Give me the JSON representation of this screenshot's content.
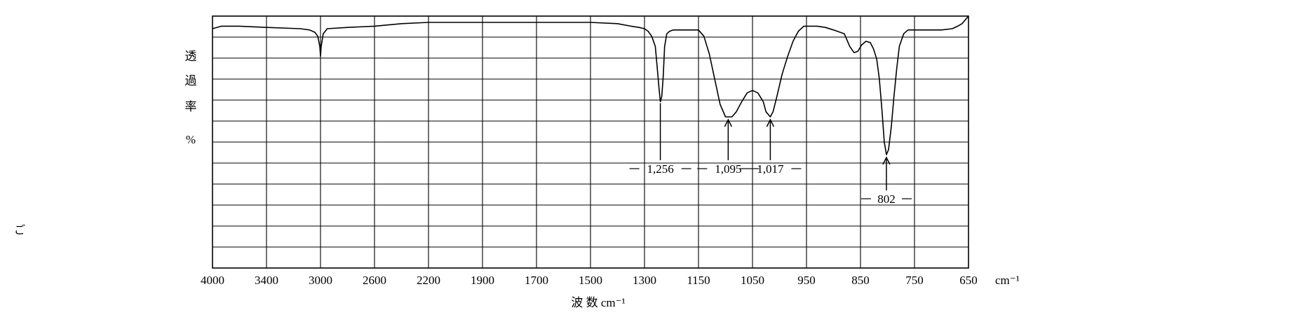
{
  "chart_data": {
    "type": "line",
    "title": "",
    "xlabel": "波 数 cm⁻¹",
    "ylabel_chars": [
      "透",
      "過",
      "率",
      "%"
    ],
    "x_unit": "cm⁻¹",
    "x_tick_labels": [
      "4000",
      "3400",
      "3000",
      "2600",
      "2200",
      "1900",
      "1700",
      "1500",
      "1300",
      "1150",
      "1050",
      "950",
      "850",
      "750",
      "650"
    ],
    "grid": true,
    "series": [
      {
        "x": [
          4000,
          3900,
          3700,
          3400,
          3150,
          3080,
          3040,
          3020,
          3005,
          3000,
          2995,
          2980,
          2950,
          2800,
          2600,
          2400,
          2200,
          2100,
          1900,
          1800,
          1700,
          1600,
          1500,
          1400,
          1350,
          1320,
          1300,
          1290,
          1280,
          1270,
          1265,
          1260,
          1256,
          1252,
          1248,
          1244,
          1238,
          1230,
          1220,
          1200,
          1180,
          1165,
          1150,
          1140,
          1130,
          1120,
          1110,
          1100,
          1095,
          1088,
          1080,
          1070,
          1060,
          1050,
          1040,
          1030,
          1025,
          1017,
          1012,
          1005,
          995,
          985,
          975,
          965,
          955,
          945,
          930,
          915,
          900,
          880,
          870,
          862,
          855,
          848,
          840,
          832,
          826,
          820,
          815,
          810,
          806,
          802,
          798,
          793,
          788,
          783,
          778,
          770,
          762,
          755,
          745,
          700,
          680,
          670,
          662,
          656,
          650
        ],
        "y": [
          95,
          96,
          96,
          95.5,
          95,
          94.5,
          93.5,
          92,
          88,
          84,
          88,
          93,
          95,
          95.5,
          96,
          97,
          97.5,
          97.5,
          97.5,
          97.5,
          97.5,
          97.5,
          97.5,
          97,
          96,
          95.5,
          95,
          94,
          92,
          88,
          80,
          72,
          66,
          68,
          76,
          88,
          93,
          94,
          94.5,
          94.5,
          94.5,
          94.5,
          94.5,
          92,
          85,
          75,
          65,
          60,
          60,
          60,
          62,
          66,
          69.5,
          70.5,
          69.5,
          66,
          62,
          60,
          62,
          68,
          77,
          84,
          90,
          94,
          96,
          96,
          96,
          95.5,
          94.5,
          93,
          88,
          85.5,
          86,
          88.5,
          90,
          89.5,
          87,
          83,
          75,
          62,
          50,
          45,
          47,
          56,
          68,
          79,
          88,
          93,
          94.5,
          94.5,
          94.5,
          94.5,
          95,
          96,
          97,
          98.5,
          100
        ]
      }
    ],
    "annotations": [
      {
        "label": "1,256",
        "x": 1256,
        "arrow": false
      },
      {
        "label": "1,095",
        "x": 1095,
        "arrow": true
      },
      {
        "label": "1,017",
        "x": 1017,
        "arrow": true
      },
      {
        "label": "802",
        "x": 802,
        "arrow": true
      }
    ],
    "stray_mark": "ご"
  }
}
